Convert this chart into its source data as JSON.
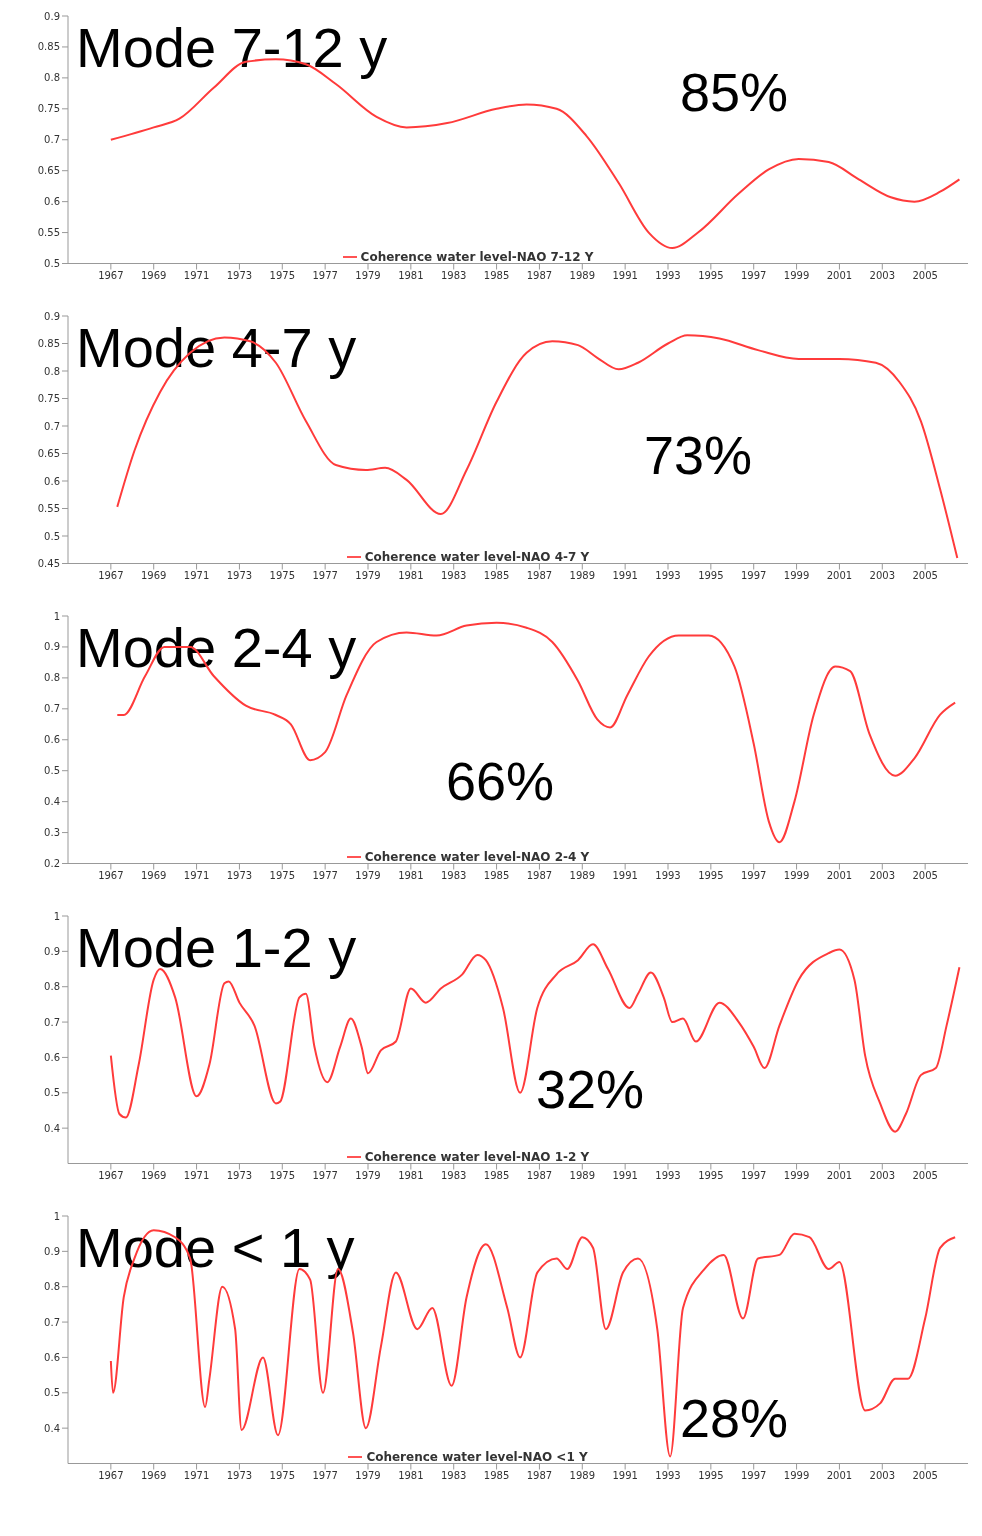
{
  "chart_data": [
    {
      "type": "line",
      "title": "Mode 7-12 y",
      "annotations": [
        "85%"
      ],
      "xlim": [
        1965,
        2007
      ],
      "xticks": [
        1967,
        1969,
        1971,
        1973,
        1975,
        1977,
        1979,
        1981,
        1983,
        1985,
        1987,
        1989,
        1991,
        1993,
        1995,
        1997,
        1999,
        2001,
        2003,
        2005
      ],
      "ylim": [
        0.5,
        0.9
      ],
      "yticks": [
        0.5,
        0.55,
        0.6,
        0.65,
        0.7,
        0.75,
        0.8,
        0.85,
        0.9
      ],
      "legend": "bottom",
      "x": [
        1967,
        1969,
        1970.2,
        1971.8,
        1973.3,
        1974.7,
        1976.1,
        1977.5,
        1979.4,
        1980.8,
        1982.7,
        1985,
        1986.4,
        1987.8,
        1989.2,
        1990.7,
        1992.1,
        1993.2,
        1994.4,
        1996.3,
        1997.7,
        1999.1,
        2000.5,
        2001.9,
        2003.4,
        2004.5,
        2005.7,
        2006.6
      ],
      "series": [
        {
          "name": "Coherence water level-NAO 7-12 Y",
          "color": "#ff3b3b",
          "values": [
            0.7,
            0.72,
            0.734,
            0.784,
            0.826,
            0.83,
            0.822,
            0.79,
            0.737,
            0.72,
            0.727,
            0.75,
            0.757,
            0.75,
            0.706,
            0.63,
            0.55,
            0.525,
            0.55,
            0.613,
            0.652,
            0.669,
            0.664,
            0.636,
            0.607,
            0.6,
            0.616,
            0.636
          ]
        }
      ]
    },
    {
      "type": "line",
      "title": "Mode 4-7 y",
      "annotations": [
        "73%"
      ],
      "xlim": [
        1965,
        2007
      ],
      "xticks": [
        1967,
        1969,
        1971,
        1973,
        1975,
        1977,
        1979,
        1981,
        1983,
        1985,
        1987,
        1989,
        1991,
        1993,
        1995,
        1997,
        1999,
        2001,
        2003,
        2005
      ],
      "ylim": [
        0.45,
        0.9
      ],
      "yticks": [
        0.45,
        0.5,
        0.55,
        0.6,
        0.65,
        0.7,
        0.75,
        0.8,
        0.85,
        0.9
      ],
      "legend": "bottom",
      "x": [
        1967.3,
        1968.1,
        1969.3,
        1970.7,
        1972.3,
        1973.5,
        1974.7,
        1976.1,
        1977.5,
        1978.9,
        1979.8,
        1980.8,
        1982.4,
        1983.6,
        1985,
        1986.4,
        1987.6,
        1988.8,
        1989.7,
        1990.7,
        1991.6,
        1993,
        1993.9,
        1995.4,
        1997.2,
        1999.1,
        2001,
        2002.7,
        2003.8,
        2004.8,
        2005.7,
        2006.5
      ],
      "series": [
        {
          "name": "Coherence water level-NAO 4-7 Y",
          "color": "#ff3b3b",
          "values": [
            0.553,
            0.655,
            0.762,
            0.833,
            0.861,
            0.854,
            0.815,
            0.709,
            0.629,
            0.62,
            0.624,
            0.602,
            0.54,
            0.62,
            0.744,
            0.833,
            0.854,
            0.847,
            0.824,
            0.803,
            0.815,
            0.85,
            0.865,
            0.859,
            0.838,
            0.822,
            0.822,
            0.815,
            0.78,
            0.709,
            0.585,
            0.46
          ]
        }
      ]
    },
    {
      "type": "line",
      "title": "Mode 2-4 y",
      "annotations": [
        "66%"
      ],
      "xlim": [
        1965,
        2007
      ],
      "xticks": [
        1967,
        1969,
        1971,
        1973,
        1975,
        1977,
        1979,
        1981,
        1983,
        1985,
        1987,
        1989,
        1991,
        1993,
        1995,
        1997,
        1999,
        2001,
        2003,
        2005
      ],
      "ylim": [
        0.2,
        1
      ],
      "yticks": [
        0.2,
        0.3,
        0.4,
        0.5,
        0.6,
        0.7,
        0.8,
        0.9,
        1
      ],
      "legend": "bottom",
      "x": [
        1967.3,
        1967.6,
        1968.6,
        1969.5,
        1970.7,
        1971.8,
        1973.3,
        1974.7,
        1975.4,
        1976.3,
        1977,
        1978,
        1979.4,
        1980.8,
        1982.2,
        1983.6,
        1985,
        1986.4,
        1987.6,
        1988.8,
        1989.7,
        1990.3,
        1991.1,
        1992.1,
        1993.5,
        1994.9,
        1996.1,
        1997,
        1997.7,
        1998.2,
        1998.9,
        1999.8,
        2000.8,
        2001.5,
        2002.4,
        2003.6,
        2004.5,
        2005.7,
        2006.4
      ],
      "series": [
        {
          "name": "Coherence water level-NAO 2-4 Y",
          "color": "#ff3b3b",
          "values": [
            0.68,
            0.68,
            0.806,
            0.9,
            0.9,
            0.806,
            0.71,
            0.68,
            0.65,
            0.534,
            0.56,
            0.744,
            0.916,
            0.947,
            0.937,
            0.969,
            0.978,
            0.962,
            0.916,
            0.79,
            0.666,
            0.64,
            0.744,
            0.869,
            0.937,
            0.937,
            0.837,
            0.587,
            0.337,
            0.269,
            0.4,
            0.681,
            0.837,
            0.822,
            0.619,
            0.484,
            0.54,
            0.681,
            0.72
          ]
        }
      ]
    },
    {
      "type": "line",
      "title": "Mode 1-2 y",
      "annotations": [
        "32%"
      ],
      "xlim": [
        1965,
        2007
      ],
      "xticks": [
        1967,
        1969,
        1971,
        1973,
        1975,
        1977,
        1979,
        1981,
        1983,
        1985,
        1987,
        1989,
        1991,
        1993,
        1995,
        1997,
        1999,
        2001,
        2003,
        2005
      ],
      "ylim": [
        0.3,
        1
      ],
      "yticks": [
        0.4,
        0.5,
        0.6,
        0.7,
        0.8,
        0.9,
        1
      ],
      "legend": "bottom",
      "x": [
        1967,
        1967.4,
        1967.7,
        1968.3,
        1969,
        1969.3,
        1970,
        1971,
        1971.6,
        1972.3,
        1972.5,
        1973,
        1973.7,
        1974.7,
        1974.9,
        1975.8,
        1976.1,
        1976.5,
        1977.1,
        1977.7,
        1978.2,
        1978.7,
        1979,
        1979.6,
        1980.3,
        1981,
        1981.7,
        1982.4,
        1983.4,
        1984.1,
        1984.5,
        1985.3,
        1986.1,
        1986.9,
        1987.8,
        1988.8,
        1989.5,
        1990.2,
        1991.2,
        1991.6,
        1992.2,
        1992.8,
        1993.2,
        1993.7,
        1994.3,
        1995.4,
        1996.3,
        1997,
        1997.5,
        1998.2,
        1999.1,
        2000.5,
        2001,
        2001.7,
        2002.2,
        2002.9,
        2003.6,
        2004.1,
        2004.8,
        2005.5,
        2006,
        2006.6
      ],
      "series": [
        {
          "name": "Coherence water level-NAO 1-2 Y",
          "color": "#ff3b3b",
          "values": [
            0.605,
            0.44,
            0.43,
            0.58,
            0.82,
            0.85,
            0.77,
            0.49,
            0.58,
            0.81,
            0.815,
            0.755,
            0.69,
            0.47,
            0.475,
            0.77,
            0.78,
            0.63,
            0.53,
            0.63,
            0.71,
            0.63,
            0.555,
            0.62,
            0.645,
            0.795,
            0.755,
            0.795,
            0.835,
            0.89,
            0.875,
            0.74,
            0.5,
            0.74,
            0.835,
            0.875,
            0.92,
            0.85,
            0.74,
            0.78,
            0.84,
            0.77,
            0.7,
            0.71,
            0.645,
            0.755,
            0.7,
            0.63,
            0.57,
            0.69,
            0.82,
            0.895,
            0.905,
            0.82,
            0.605,
            0.47,
            0.39,
            0.44,
            0.55,
            0.57,
            0.69,
            0.855
          ]
        }
      ]
    },
    {
      "type": "line",
      "title": "Mode < 1 y",
      "annotations": [
        "28%"
      ],
      "xlim": [
        1965,
        2007
      ],
      "xticks": [
        1967,
        1969,
        1971,
        1973,
        1975,
        1977,
        1979,
        1981,
        1983,
        1985,
        1987,
        1989,
        1991,
        1993,
        1995,
        1997,
        1999,
        2001,
        2003,
        2005
      ],
      "ylim": [
        0.3,
        1
      ],
      "yticks": [
        0.4,
        0.5,
        0.6,
        0.7,
        0.8,
        0.9,
        1
      ],
      "legend": "bottom",
      "x": [
        1967,
        1967.1,
        1967.6,
        1968.1,
        1969,
        1970,
        1970.7,
        1971.4,
        1971.6,
        1972.2,
        1972.8,
        1973.1,
        1974.1,
        1974.8,
        1975.8,
        1976.3,
        1976.9,
        1977.6,
        1978.3,
        1978.9,
        1979.6,
        1980.3,
        1981.3,
        1982,
        1982.9,
        1983.6,
        1984.5,
        1985.5,
        1986.1,
        1986.9,
        1987.8,
        1988.3,
        1989,
        1989.5,
        1990.1,
        1990.9,
        1991.6,
        1992.5,
        1993.1,
        1993.7,
        1994.7,
        1995.6,
        1996.5,
        1997.2,
        1998.2,
        1998.9,
        1999.6,
        2000.5,
        2001,
        2002.2,
        2002.9,
        2003.6,
        2004.2,
        2005,
        2005.7,
        2006.4
      ],
      "series": [
        {
          "name": "Coherence water level-NAO <1 Y",
          "color": "#ff3b3b",
          "values": [
            0.59,
            0.5,
            0.77,
            0.88,
            0.96,
            0.94,
            0.88,
            0.46,
            0.54,
            0.8,
            0.68,
            0.395,
            0.6,
            0.38,
            0.85,
            0.82,
            0.5,
            0.85,
            0.67,
            0.4,
            0.63,
            0.84,
            0.68,
            0.74,
            0.52,
            0.77,
            0.92,
            0.74,
            0.6,
            0.84,
            0.88,
            0.85,
            0.94,
            0.91,
            0.68,
            0.84,
            0.88,
            0.68,
            0.32,
            0.74,
            0.85,
            0.89,
            0.71,
            0.88,
            0.89,
            0.95,
            0.94,
            0.85,
            0.87,
            0.45,
            0.47,
            0.54,
            0.54,
            0.71,
            0.91,
            0.94
          ]
        }
      ]
    }
  ]
}
